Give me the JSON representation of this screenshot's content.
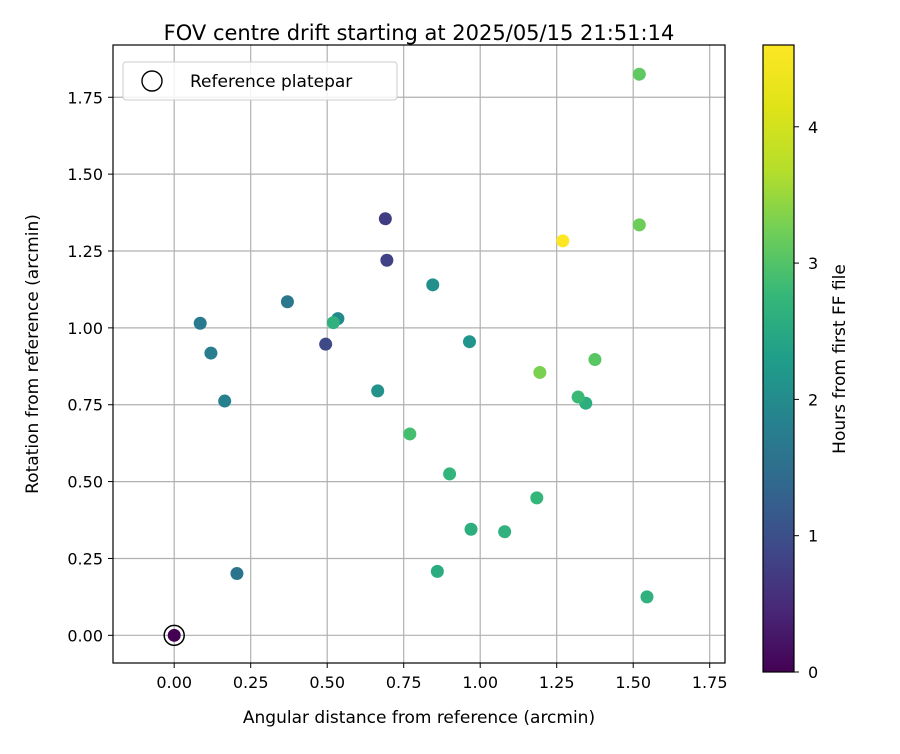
{
  "chart_data": {
    "type": "scatter",
    "title": "FOV centre drift starting at 2025/05/15 21:51:14",
    "xlabel": "Angular distance from reference (arcmin)",
    "ylabel": "Rotation from reference (arcmin)",
    "xlim": [
      -0.2,
      1.8
    ],
    "ylim": [
      -0.09,
      1.92
    ],
    "xticks": [
      "0.00",
      "0.25",
      "0.50",
      "0.75",
      "1.00",
      "1.25",
      "1.50",
      "1.75"
    ],
    "yticks": [
      "0.00",
      "0.25",
      "0.50",
      "0.75",
      "1.00",
      "1.25",
      "1.50",
      "1.75"
    ],
    "grid": true,
    "legend": {
      "position": "top-left",
      "entries": [
        "Reference platepar"
      ]
    },
    "reference_point": {
      "x": 0.0,
      "y": 0.0
    },
    "colorbar": {
      "label": "Hours from first FF file",
      "range": [
        0,
        4.6
      ],
      "ticks": [
        "0",
        "1",
        "2",
        "3",
        "4"
      ],
      "colormap": "viridis"
    },
    "points": [
      {
        "x": 0.0,
        "y": 0.0,
        "hours": 0.0
      },
      {
        "x": 0.69,
        "y": 1.355,
        "hours": 0.75
      },
      {
        "x": 0.695,
        "y": 1.22,
        "hours": 0.8
      },
      {
        "x": 0.495,
        "y": 0.947,
        "hours": 0.9
      },
      {
        "x": 0.205,
        "y": 0.201,
        "hours": 1.6
      },
      {
        "x": 0.37,
        "y": 1.085,
        "hours": 1.65
      },
      {
        "x": 0.085,
        "y": 1.015,
        "hours": 1.7
      },
      {
        "x": 0.12,
        "y": 0.918,
        "hours": 1.75
      },
      {
        "x": 0.165,
        "y": 0.762,
        "hours": 1.8
      },
      {
        "x": 0.535,
        "y": 1.03,
        "hours": 1.95
      },
      {
        "x": 0.845,
        "y": 1.14,
        "hours": 2.05
      },
      {
        "x": 0.665,
        "y": 0.795,
        "hours": 2.1
      },
      {
        "x": 0.965,
        "y": 0.955,
        "hours": 2.15
      },
      {
        "x": 0.52,
        "y": 1.017,
        "hours": 2.65
      },
      {
        "x": 0.86,
        "y": 0.208,
        "hours": 2.55
      },
      {
        "x": 0.97,
        "y": 0.345,
        "hours": 2.6
      },
      {
        "x": 1.08,
        "y": 0.337,
        "hours": 2.65
      },
      {
        "x": 0.9,
        "y": 0.525,
        "hours": 2.7
      },
      {
        "x": 1.185,
        "y": 0.447,
        "hours": 2.75
      },
      {
        "x": 1.345,
        "y": 0.755,
        "hours": 2.6
      },
      {
        "x": 1.32,
        "y": 0.775,
        "hours": 2.8
      },
      {
        "x": 1.545,
        "y": 0.125,
        "hours": 2.65
      },
      {
        "x": 0.77,
        "y": 0.655,
        "hours": 2.9
      },
      {
        "x": 1.375,
        "y": 0.897,
        "hours": 3.05
      },
      {
        "x": 1.195,
        "y": 0.855,
        "hours": 3.3
      },
      {
        "x": 1.52,
        "y": 1.335,
        "hours": 3.2
      },
      {
        "x": 1.52,
        "y": 1.825,
        "hours": 3.1
      },
      {
        "x": 1.27,
        "y": 1.283,
        "hours": 4.6
      }
    ]
  }
}
